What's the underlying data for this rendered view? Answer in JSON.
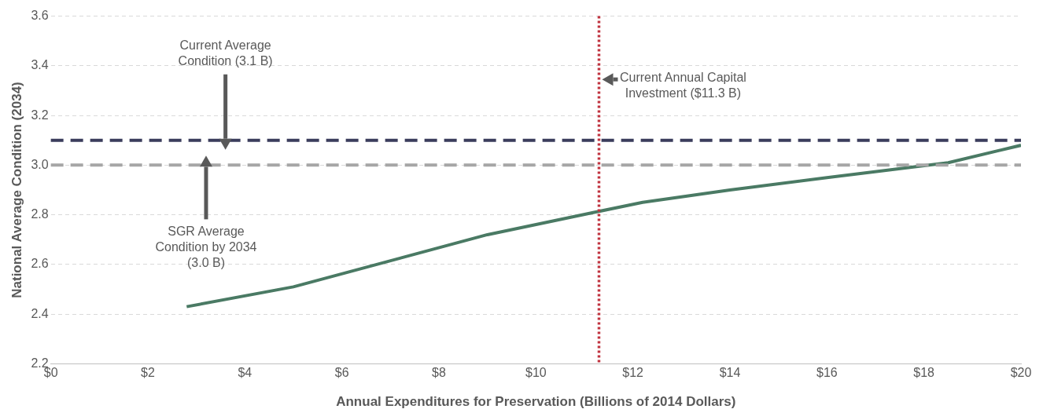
{
  "chart_data": {
    "type": "line",
    "xlabel": "Annual Expenditures for Preservation (Billions of 2014 Dollars)",
    "ylabel": "National Average Condition (2034)",
    "series": [
      {
        "color": "#4a7a64",
        "x": [
          2.8,
          5.0,
          9.0,
          11.2,
          12.2,
          14.0,
          16.0,
          18.5,
          20.0
        ],
        "values": [
          2.43,
          2.51,
          2.72,
          2.81,
          2.85,
          2.9,
          2.95,
          3.01,
          3.08
        ]
      }
    ],
    "xlim": [
      0,
      20
    ],
    "xticks": [
      {
        "value": 0,
        "label": "$0"
      },
      {
        "value": 2,
        "label": "$2"
      },
      {
        "value": 4,
        "label": "$4"
      },
      {
        "value": 6,
        "label": "$6"
      },
      {
        "value": 8,
        "label": "$8"
      },
      {
        "value": 10,
        "label": "$10"
      },
      {
        "value": 12,
        "label": "$12"
      },
      {
        "value": 14,
        "label": "$14"
      },
      {
        "value": 16,
        "label": "$16"
      },
      {
        "value": 18,
        "label": "$18"
      },
      {
        "value": 20,
        "label": "$20"
      }
    ],
    "ylim": [
      2.2,
      3.6
    ],
    "yticks": [
      2.2,
      2.4,
      2.6,
      2.8,
      {
        "value": 3,
        "label": "3.0"
      },
      3.2,
      3.4,
      3.6
    ],
    "grid": "y",
    "legend": false,
    "marker": "none",
    "line_style": "solid",
    "ref_lines": [
      {
        "axis": "y",
        "value": 3.1,
        "label": "Current Average Condition (3.1 B)",
        "color": "#3b3d5c",
        "line_style": "dashed"
      },
      {
        "axis": "y",
        "value": 3.0,
        "label": "SGR Average Condition by 2034 (3.0 B)",
        "color": "#a6a6a6",
        "line_style": "dashed"
      },
      {
        "axis": "x",
        "value": 11.3,
        "label": "Current Annual Capital Investment ($11.3 B)",
        "color": "#c0333f",
        "line_style": "dotted"
      }
    ]
  }
}
